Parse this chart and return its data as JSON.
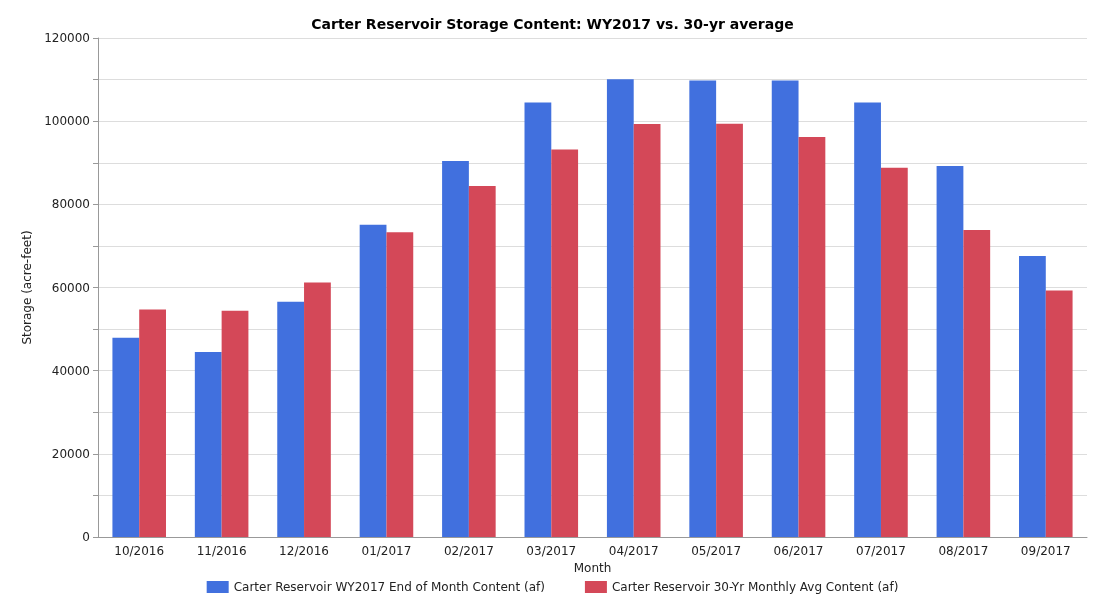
{
  "chart_data": {
    "type": "bar",
    "title": "Carter Reservoir Storage Content: WY2017 vs. 30-yr average",
    "xlabel": "Month",
    "ylabel": "Storage (acre-feet)",
    "categories": [
      "10/2016",
      "11/2016",
      "12/2016",
      "01/2017",
      "02/2017",
      "03/2017",
      "04/2017",
      "05/2017",
      "06/2017",
      "07/2017",
      "08/2017",
      "09/2017"
    ],
    "series": [
      {
        "name": "Carter Reservoir WY2017 End of Month Content (af)",
        "color": "#4170de",
        "values": [
          47900,
          44500,
          56600,
          75100,
          90400,
          104500,
          110100,
          109800,
          109800,
          104500,
          89200,
          67600
        ]
      },
      {
        "name": "Carter Reservoir 30-Yr Monthly Avg Content (af)",
        "color": "#d44858",
        "values": [
          54700,
          54400,
          61200,
          73300,
          84400,
          93200,
          99300,
          99400,
          96200,
          88800,
          73800,
          59300
        ]
      }
    ],
    "ylim": [
      0,
      120000
    ],
    "yticks": [
      0,
      {
        "value": 10000,
        "label": null
      },
      20000,
      {
        "value": 30000,
        "label": null
      },
      40000,
      {
        "value": 50000,
        "label": null
      },
      60000,
      {
        "value": 70000,
        "label": null
      },
      80000,
      {
        "value": 90000,
        "label": null
      },
      100000,
      {
        "value": 110000,
        "label": null
      },
      120000
    ],
    "grid": "y",
    "legend": "bottom"
  }
}
